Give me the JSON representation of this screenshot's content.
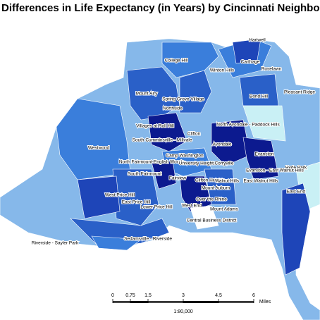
{
  "title": "Differences in Life Expectancy (in Years) by Cincinnati Neighborho",
  "neighborhoods": [
    "Hartwell",
    "College Hill",
    "Carthage",
    "Roselawn",
    "Winton Hills",
    "Bond Hill",
    "Pleasant Ridge",
    "Mount Airy",
    "Spring Grove Village",
    "Northside",
    "North Avondale - Paddock Hills",
    "Villages at Roll Hill",
    "Clifton",
    "South Cumminsville - Millvale",
    "Avondale",
    "Westwood",
    "Camp Washington",
    "Evanston",
    "North Fairmount-English Woods",
    "University Heights",
    "Corryville",
    "Hyde Park",
    "Evanston - East Walnut Hills",
    "South Fairmount",
    "Clifton Heights",
    "Walnut Hills",
    "East Walnut Hills",
    "Fairview",
    "Mount Auburn",
    "East End",
    "East Price Hill",
    "West Price Hill",
    "Over the Rhine",
    "Lower Price Hill",
    "West End",
    "Mount Adams",
    "Central Business District",
    "Sedamsville - Riverside",
    "Riverside - Sayler Park"
  ],
  "scale_bar": {
    "ticks": [
      0,
      0.75,
      1.5,
      3,
      4.5,
      6
    ],
    "unit": "Miles",
    "ratio": "1:80,000"
  }
}
